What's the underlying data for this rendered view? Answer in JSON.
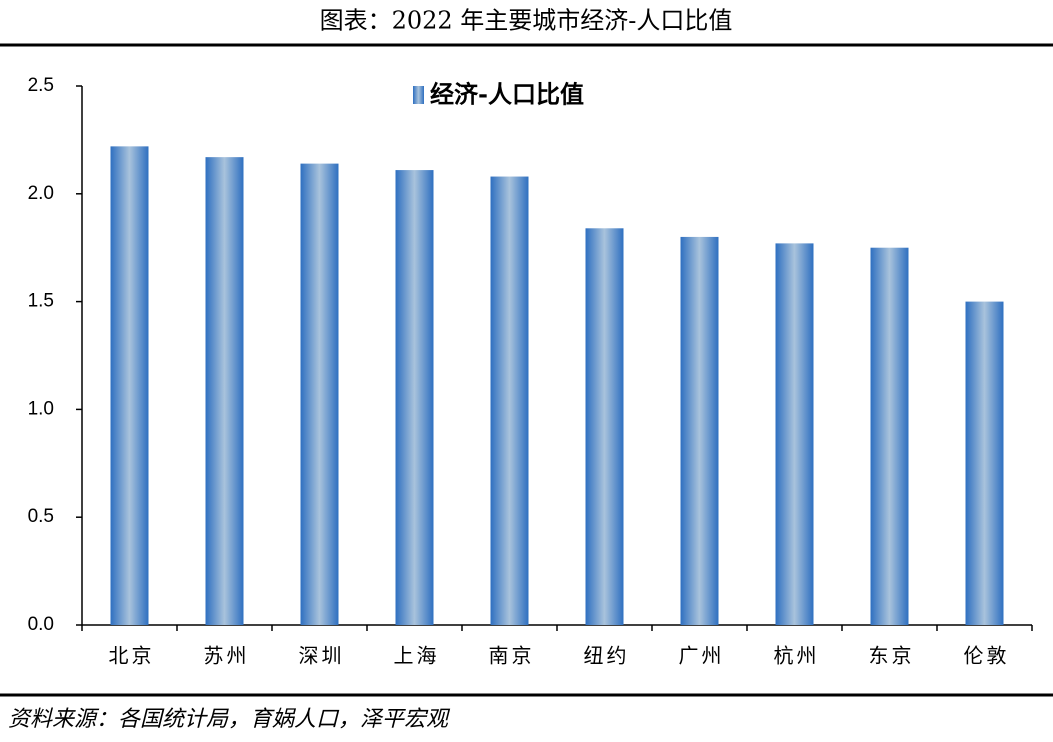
{
  "chart_data": {
    "type": "bar",
    "title": "图表：2022 年主要城市经济-人口比值",
    "source": "资料来源：各国统计局，育娲人口，泽平宏观",
    "categories": [
      "北京",
      "苏州",
      "深圳",
      "上海",
      "南京",
      "纽约",
      "广州",
      "杭州",
      "东京",
      "伦敦"
    ],
    "series": [
      {
        "name": "经济-人口比值",
        "color": "#2e6fc0",
        "values": [
          2.22,
          2.17,
          2.14,
          2.11,
          2.08,
          1.84,
          1.8,
          1.77,
          1.75,
          1.5
        ]
      }
    ],
    "ylim": [
      0,
      2.5
    ],
    "yticks": [
      {
        "value": 0,
        "label": "0.0"
      },
      0.5,
      {
        "value": 1,
        "label": "1.0"
      },
      1.5,
      {
        "value": 2,
        "label": "2.0"
      },
      2.5
    ],
    "grid": false,
    "legend": "top"
  }
}
